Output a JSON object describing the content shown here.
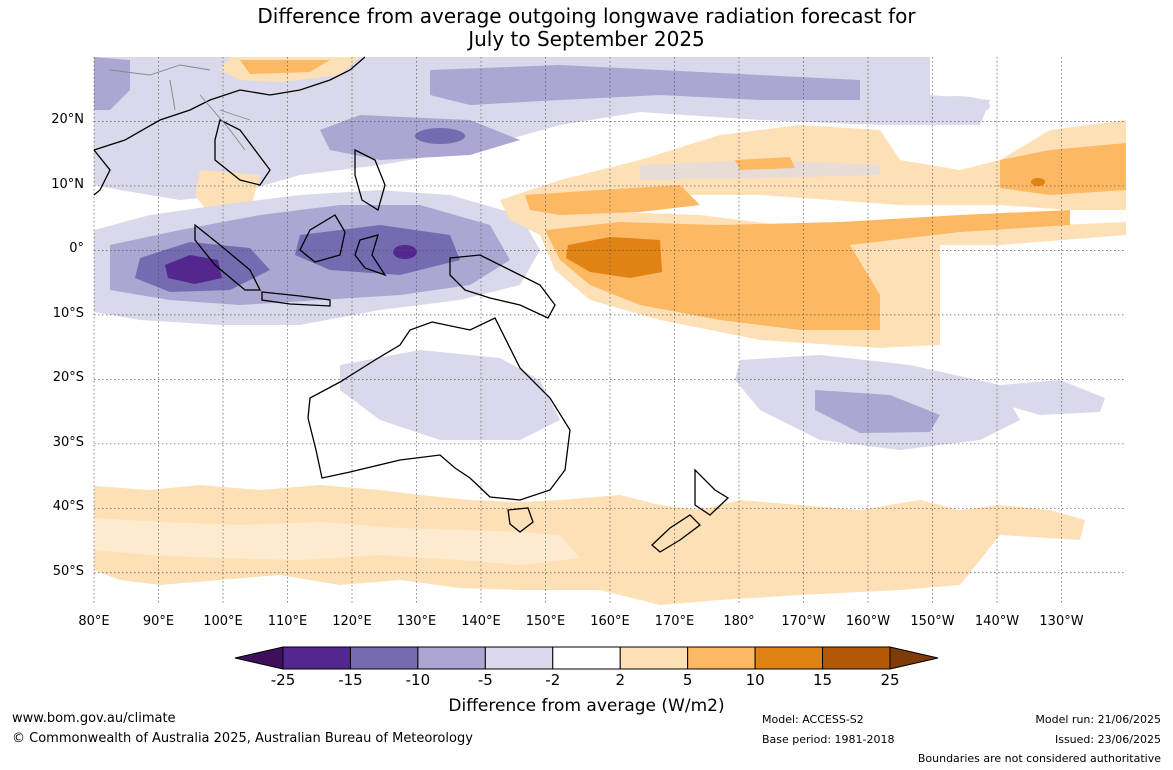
{
  "title": {
    "line1": "Difference from average outgoing longwave radiation forecast for",
    "line2": "July to September 2025"
  },
  "map": {
    "lat_labels": [
      "20°N",
      "10°N",
      "0°",
      "10°S",
      "20°S",
      "30°S",
      "40°S",
      "50°S"
    ],
    "lon_labels": [
      "80°E",
      "90°E",
      "100°E",
      "110°E",
      "120°E",
      "130°E",
      "140°E",
      "150°E",
      "160°E",
      "170°E",
      "180°",
      "170°W",
      "160°W",
      "150°W",
      "140°W",
      "130°W"
    ],
    "extent": {
      "lon_min": 80,
      "lon_max": 240,
      "lat_min": -55,
      "lat_max": 30
    }
  },
  "colorbar": {
    "colors": [
      "#3f0f5c",
      "#54278f",
      "#756bb1",
      "#aba6d2",
      "#d9d9eb",
      "#ffffff",
      "#fee0b6",
      "#fdb863",
      "#e08214",
      "#b35806",
      "#7f3b08"
    ],
    "ticks": [
      "-25",
      "-15",
      "-10",
      "-5",
      "-2",
      "2",
      "5",
      "10",
      "15",
      "25"
    ],
    "title": "Difference from average (W/m2)"
  },
  "footer": {
    "website": "www.bom.gov.au/climate",
    "copyright": "© Commonwealth of Australia 2025, Australian Bureau of Meteorology",
    "model": "Model: ACCESS-S2",
    "base_period": "Base period: 1981-2018",
    "model_run": "Model run: 21/06/2025",
    "issued": "Issued: 23/06/2025",
    "disclaimer": "Boundaries are not considered authoritative"
  }
}
